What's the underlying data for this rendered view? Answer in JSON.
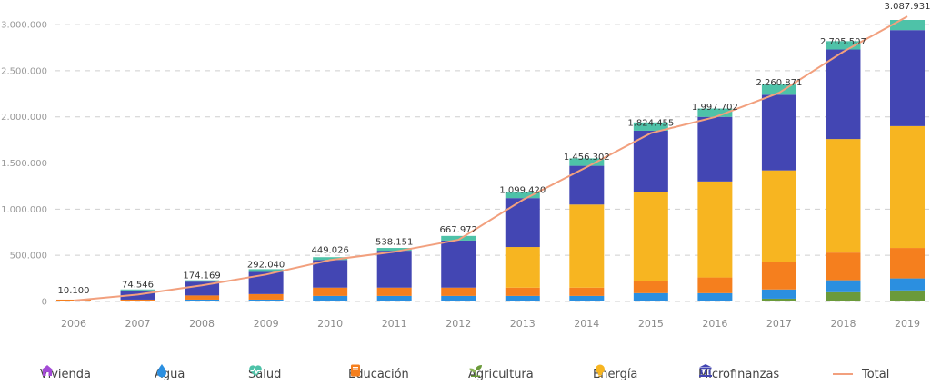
{
  "chart_data": {
    "type": "bar",
    "stacked": true,
    "categories": [
      "2006",
      "2007",
      "2008",
      "2009",
      "2010",
      "2011",
      "2012",
      "2013",
      "2014",
      "2015",
      "2016",
      "2017",
      "2018",
      "2019"
    ],
    "y_ticks": [
      "3.000.000",
      "2.500.000",
      "2.000.000",
      "1.500.000",
      "1.000.000",
      "500.000",
      "0"
    ],
    "ylim": [
      0,
      3050000
    ],
    "grid": true,
    "legend_position": "bottom",
    "series": [
      {
        "name": "Agricultura",
        "color": "#6b9a3a",
        "icon": "sprout-icon",
        "values": [
          0,
          0,
          0,
          0,
          0,
          0,
          0,
          0,
          0,
          0,
          0,
          30000,
          100000,
          120000
        ]
      },
      {
        "name": "Agua",
        "color": "#2b8fe0",
        "icon": "water-drop-icon",
        "values": [
          5000,
          10000,
          20000,
          20000,
          60000,
          60000,
          60000,
          60000,
          60000,
          90000,
          90000,
          100000,
          130000,
          130000
        ]
      },
      {
        "name": "Educación",
        "color": "#f57f1e",
        "icon": "book-icon",
        "values": [
          15000,
          10000,
          45000,
          60000,
          90000,
          90000,
          90000,
          90000,
          90000,
          130000,
          170000,
          300000,
          300000,
          330000
        ]
      },
      {
        "name": "Energía",
        "color": "#f7b521",
        "icon": "lightbulb-icon",
        "values": [
          0,
          0,
          0,
          0,
          0,
          0,
          0,
          440000,
          900000,
          970000,
          1040000,
          990000,
          1230000,
          1320000
        ]
      },
      {
        "name": "Microfinanzas",
        "color": "#4346b3",
        "icon": "bank-icon",
        "values": [
          0,
          100000,
          150000,
          240000,
          300000,
          400000,
          510000,
          530000,
          420000,
          660000,
          700000,
          820000,
          970000,
          1040000
        ]
      },
      {
        "name": "Salud",
        "color": "#4ec2a8",
        "icon": "heart-pulse-icon",
        "values": [
          0,
          10000,
          15000,
          30000,
          30000,
          30000,
          50000,
          60000,
          80000,
          90000,
          90000,
          110000,
          90000,
          110000
        ]
      },
      {
        "name": "Vivienda",
        "color": "#a34bd6",
        "icon": "house-icon",
        "values": [
          0,
          0,
          0,
          0,
          0,
          0,
          0,
          0,
          0,
          0,
          0,
          0,
          0,
          0
        ]
      }
    ],
    "total_series": {
      "name": "Total",
      "color": "#f2a07e",
      "values": [
        10100,
        74546,
        174169,
        292040,
        449026,
        538151,
        667972,
        1099420,
        1456302,
        1824455,
        1997702,
        2260871,
        2705507,
        3087931
      ],
      "labels": [
        "10.100",
        "74.546",
        "174.169",
        "292.040",
        "449.026",
        "538.151",
        "667.972",
        "1.099.420",
        "1.456.302",
        "1.824.455",
        "1.997.702",
        "2.260.871",
        "2.705.507",
        "3.087.931"
      ]
    },
    "legend": [
      {
        "label": "Vivienda",
        "icon": "house-icon",
        "color": "#a34bd6"
      },
      {
        "label": "Agua",
        "icon": "water-drop-icon",
        "color": "#2b8fe0"
      },
      {
        "label": "Salud",
        "icon": "heart-pulse-icon",
        "color": "#4ec2a8"
      },
      {
        "label": "Educación",
        "icon": "book-icon",
        "color": "#f57f1e"
      },
      {
        "label": "Agricultura",
        "icon": "sprout-icon",
        "color": "#6b9a3a"
      },
      {
        "label": "Energía",
        "icon": "lightbulb-icon",
        "color": "#f7b521"
      },
      {
        "label": "Microfinanzas",
        "icon": "bank-icon",
        "color": "#4346b3"
      },
      {
        "label": "Total",
        "icon": "line-icon",
        "color": "#f2a07e"
      }
    ]
  }
}
